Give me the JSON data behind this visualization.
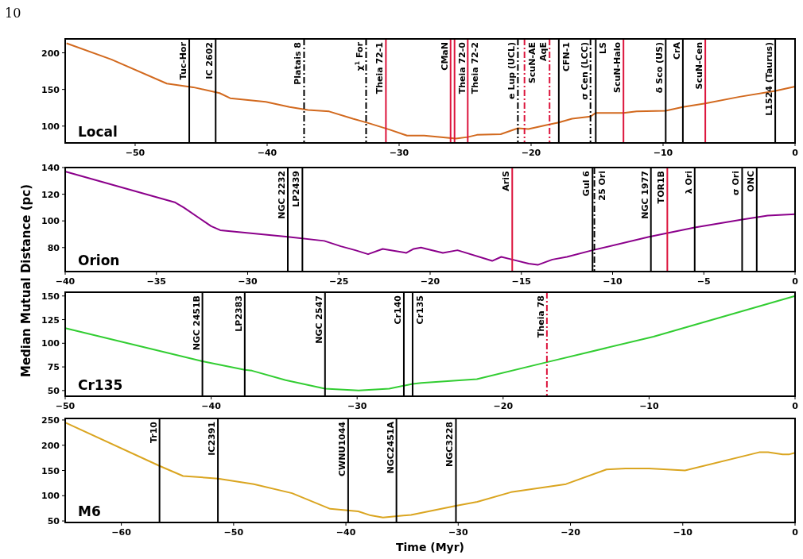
{
  "chart_data": [
    {
      "type": "line",
      "title": "Local",
      "annotations": [
        "10"
      ],
      "series": [
        {
          "color": "#d2691e",
          "x": [
            -55.2,
            -51.8,
            -47.6,
            -45.6,
            -43.6,
            -42.8,
            -40.1,
            -38.3,
            -36.9,
            -35.3,
            -33.5,
            -32.3,
            -30.7,
            -29.4,
            -28.1,
            -25.7,
            -24.8,
            -24.1,
            -22.3,
            -21.0,
            -20.2,
            -18.7,
            -17.9,
            -16.9,
            -15.5,
            -15.1,
            -13.0,
            -12.0,
            -9.8,
            -8.5,
            -6.8,
            -4.2,
            -1.5,
            0
          ],
          "values": [
            213,
            191,
            158,
            153,
            145,
            138,
            133,
            126,
            122,
            120,
            110,
            104,
            95,
            87,
            87,
            83,
            85,
            88,
            89,
            97,
            96,
            102,
            105,
            110,
            113,
            118,
            118,
            120,
            121,
            126,
            131,
            140,
            148,
            154
          ]
        }
      ],
      "xlim": [
        -55.3,
        0
      ],
      "xticks": [
        {
          "value": -50,
          "label": "−50"
        },
        {
          "value": -40,
          "label": "−40"
        },
        {
          "value": -30,
          "label": "−30"
        },
        {
          "value": -20,
          "label": "−20"
        },
        {
          "value": -10,
          "label": "−10"
        },
        {
          "value": 0,
          "label": "0"
        }
      ],
      "ylim": [
        77,
        219
      ],
      "yticks": [
        100,
        150,
        200
      ],
      "ref_lines": [
        {
          "axis": "x",
          "value": -45.9,
          "label": "Tuc-Hor",
          "color": "#000000",
          "line_style": "solid"
        },
        {
          "axis": "x",
          "value": -43.9,
          "label": "IC 2602",
          "color": "#000000",
          "line_style": "solid"
        },
        {
          "axis": "x",
          "value": -37.2,
          "label": "Platais 8",
          "color": "#000000",
          "line_style": "dashdot"
        },
        {
          "axis": "x",
          "value": -32.5,
          "label": "χ$^{1}$ For",
          "color": "#000000",
          "line_style": "dashdot"
        },
        {
          "axis": "x",
          "value": -31.0,
          "label": "Theia 72-1",
          "color": "#dc143c",
          "line_style": "solid"
        },
        {
          "axis": "x",
          "value": -26.1,
          "label": "CMaN",
          "color": "#dc143c",
          "line_style": "solid"
        },
        {
          "axis": "x",
          "value": -25.8,
          "label": "Theia 72-0",
          "color": "#dc143c",
          "line_style": "solid"
        },
        {
          "axis": "x",
          "value": -24.8,
          "label": "Theia 72-2",
          "color": "#dc143c",
          "line_style": "solid"
        },
        {
          "axis": "x",
          "value": -21.0,
          "label": "e Lup (UCL)",
          "color": "#000000",
          "line_style": "dashdot"
        },
        {
          "axis": "x",
          "value": -20.5,
          "label": "ScuN-AE",
          "color": "#dc143c",
          "line_style": "dashdot"
        },
        {
          "axis": "x",
          "value": -18.6,
          "label": "AqE",
          "color": "#dc143c",
          "line_style": "dashdot"
        },
        {
          "axis": "x",
          "value": -17.9,
          "label": "CFN-1",
          "color": "#000000",
          "line_style": "solid"
        },
        {
          "axis": "x",
          "value": -15.5,
          "label": "σ Cen (LCC)",
          "color": "#000000",
          "line_style": "dashdot"
        },
        {
          "axis": "x",
          "value": -15.1,
          "label": "LS",
          "color": "#000000",
          "line_style": "solid"
        },
        {
          "axis": "x",
          "value": -13.0,
          "label": "ScuN-Halo",
          "color": "#dc143c",
          "line_style": "solid"
        },
        {
          "axis": "x",
          "value": -9.8,
          "label": "δ Sco (US)",
          "color": "#000000",
          "line_style": "solid"
        },
        {
          "axis": "x",
          "value": -8.5,
          "label": "CrA",
          "color": "#000000",
          "line_style": "solid"
        },
        {
          "axis": "x",
          "value": -6.8,
          "label": "ScuN-Cen",
          "color": "#dc143c",
          "line_style": "solid"
        },
        {
          "axis": "x",
          "value": -1.5,
          "label": "L1524 (Taurus)",
          "color": "#000000",
          "line_style": "solid"
        }
      ]
    },
    {
      "type": "line",
      "title": "Orion",
      "ylabel": "Median Mutual Distance (pc)",
      "series": [
        {
          "color": "#8b008b",
          "x": [
            -40,
            -34.0,
            -33.5,
            -32.0,
            -31.5,
            -27.8,
            -25.8,
            -24.9,
            -24.1,
            -23.4,
            -22.6,
            -21.3,
            -20.9,
            -20.5,
            -20.2,
            -19.3,
            -18.5,
            -16.6,
            -16.1,
            -15.5,
            -14.6,
            -14.1,
            -13.3,
            -12.5,
            -11.1,
            -8.0,
            -5.5,
            -2.9,
            -1.5,
            0
          ],
          "values": [
            137,
            114,
            110,
            96,
            93,
            88,
            85,
            81,
            78,
            75,
            79,
            76,
            79,
            80,
            79,
            76,
            78,
            70,
            73,
            71,
            68,
            67,
            71,
            73,
            78,
            88,
            95,
            101,
            104,
            105
          ]
        }
      ],
      "xlim": [
        -40,
        0
      ],
      "xticks": [
        {
          "value": -40,
          "label": "−40"
        },
        {
          "value": -35,
          "label": "−35"
        },
        {
          "value": -30,
          "label": "−30"
        },
        {
          "value": -25,
          "label": "−25"
        },
        {
          "value": -20,
          "label": "−20"
        },
        {
          "value": -15,
          "label": "−15"
        },
        {
          "value": -10,
          "label": "−10"
        },
        {
          "value": -5,
          "label": "−5"
        },
        {
          "value": 0,
          "label": "0"
        }
      ],
      "ylim": [
        62,
        140
      ],
      "yticks": [
        80,
        100,
        120,
        140
      ],
      "ref_lines": [
        {
          "axis": "x",
          "value": -27.8,
          "label": "NGC 2232",
          "color": "#000000",
          "line_style": "solid"
        },
        {
          "axis": "x",
          "value": -27.0,
          "label": "LP2439",
          "color": "#000000",
          "line_style": "solid"
        },
        {
          "axis": "x",
          "value": -15.5,
          "label": "AriS",
          "color": "#dc143c",
          "line_style": "solid"
        },
        {
          "axis": "x",
          "value": -11.1,
          "label": "Gul 6",
          "color": "#000000",
          "line_style": "solid"
        },
        {
          "axis": "x",
          "value": -11.0,
          "label": "25 Ori",
          "color": "#000000",
          "line_style": "dashdot"
        },
        {
          "axis": "x",
          "value": -7.9,
          "label": "NGC 1977",
          "color": "#000000",
          "line_style": "solid"
        },
        {
          "axis": "x",
          "value": -7.0,
          "label": "TOR1B",
          "color": "#dc143c",
          "line_style": "solid"
        },
        {
          "axis": "x",
          "value": -5.5,
          "label": "λ Ori",
          "color": "#000000",
          "line_style": "solid"
        },
        {
          "axis": "x",
          "value": -2.9,
          "label": "σ Ori",
          "color": "#000000",
          "line_style": "solid"
        },
        {
          "axis": "x",
          "value": -2.1,
          "label": "ONC",
          "color": "#000000",
          "line_style": "solid"
        }
      ]
    },
    {
      "type": "line",
      "title": "Cr135",
      "series": [
        {
          "color": "#32cd32",
          "x": [
            -50,
            -40.6,
            -37.7,
            -37.2,
            -34.9,
            -32.2,
            -29.9,
            -27.8,
            -26.2,
            -25.6,
            -21.8,
            -17.0,
            -9.7,
            0
          ],
          "values": [
            116,
            81,
            72,
            71,
            61,
            52,
            50,
            52,
            57,
            58,
            62,
            80,
            107,
            150
          ]
        }
      ],
      "xlim": [
        -50,
        0
      ],
      "xticks": [
        {
          "value": -50,
          "label": "−50"
        },
        {
          "value": -40,
          "label": "−40"
        },
        {
          "value": -30,
          "label": "−30"
        },
        {
          "value": -20,
          "label": "−20"
        },
        {
          "value": -10,
          "label": "−10"
        },
        {
          "value": 0,
          "label": "0"
        }
      ],
      "ylim": [
        44,
        154
      ],
      "yticks": [
        50,
        75,
        100,
        125,
        150
      ],
      "ref_lines": [
        {
          "axis": "x",
          "value": -40.6,
          "label": "NGC 2451B",
          "color": "#000000",
          "line_style": "solid"
        },
        {
          "axis": "x",
          "value": -37.7,
          "label": "LP2383",
          "color": "#000000",
          "line_style": "solid"
        },
        {
          "axis": "x",
          "value": -32.2,
          "label": "NGC 2547",
          "color": "#000000",
          "line_style": "solid"
        },
        {
          "axis": "x",
          "value": -26.8,
          "label": "Cr140",
          "color": "#000000",
          "line_style": "solid"
        },
        {
          "axis": "x",
          "value": -26.2,
          "label": "Cr135",
          "color": "#000000",
          "line_style": "solid"
        },
        {
          "axis": "x",
          "value": -17.0,
          "label": "Theia 78",
          "color": "#dc143c",
          "line_style": "dashdot"
        }
      ]
    },
    {
      "type": "line",
      "title": "M6",
      "xlabel": "Time (Myr)",
      "series": [
        {
          "color": "#daa520",
          "x": [
            -65,
            -56.6,
            -54.5,
            -51.4,
            -48.2,
            -44.8,
            -41.4,
            -38.9,
            -37.8,
            -36.7,
            -34.2,
            -30.2,
            -28.3,
            -25.3,
            -20.4,
            -16.8,
            -15.1,
            -13.0,
            -9.8,
            -3.2,
            -2.4,
            -1.1,
            -0.5,
            0
          ],
          "values": [
            245,
            159,
            139,
            134,
            123,
            105,
            74,
            69,
            61,
            57,
            62,
            80,
            88,
            107,
            123,
            152,
            154,
            154,
            150,
            186,
            186,
            182,
            182,
            185
          ]
        }
      ],
      "xlim": [
        -65,
        0
      ],
      "xticks": [
        {
          "value": -60,
          "label": "−60"
        },
        {
          "value": -50,
          "label": "−50"
        },
        {
          "value": -40,
          "label": "−40"
        },
        {
          "value": -30,
          "label": "−30"
        },
        {
          "value": -20,
          "label": "−20"
        },
        {
          "value": -10,
          "label": "−10"
        },
        {
          "value": 0,
          "label": "0"
        }
      ],
      "ylim": [
        47,
        253
      ],
      "yticks": [
        50,
        100,
        150,
        200,
        250
      ],
      "ref_lines": [
        {
          "axis": "x",
          "value": -56.6,
          "label": "Tr10",
          "color": "#000000",
          "line_style": "solid"
        },
        {
          "axis": "x",
          "value": -51.4,
          "label": "IC2391",
          "color": "#000000",
          "line_style": "solid"
        },
        {
          "axis": "x",
          "value": -39.8,
          "label": "CWNU1044",
          "color": "#000000",
          "line_style": "solid"
        },
        {
          "axis": "x",
          "value": -35.5,
          "label": "NGC2451A",
          "color": "#000000",
          "line_style": "solid"
        },
        {
          "axis": "x",
          "value": -30.2,
          "label": "NGC3228",
          "color": "#000000",
          "line_style": "solid"
        }
      ]
    }
  ]
}
